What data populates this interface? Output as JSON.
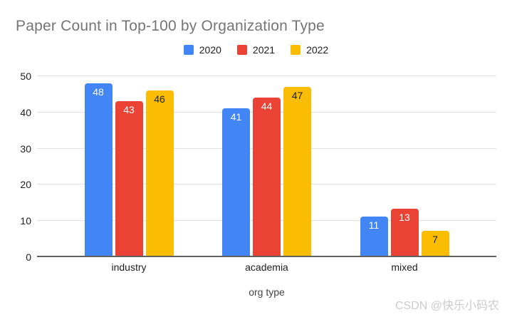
{
  "page": {
    "background": "#ffffff"
  },
  "chart_data": {
    "type": "bar",
    "title": "Paper Count in Top-100 by Organization Type",
    "title_color": "#757575",
    "categories": [
      "industry",
      "academia",
      "mixed"
    ],
    "series": [
      {
        "name": "2020",
        "color": "#4285F4",
        "label_color": "#ffffff",
        "values": [
          48,
          41,
          11
        ]
      },
      {
        "name": "2021",
        "color": "#EA4335",
        "label_color": "#ffffff",
        "values": [
          43,
          44,
          13
        ]
      },
      {
        "name": "2022",
        "color": "#FBBC04",
        "label_color": "#202124",
        "values": [
          46,
          47,
          7
        ]
      }
    ],
    "xlabel": "org type",
    "ylabel": "",
    "ylim": [
      0,
      50
    ],
    "yticks": [
      0,
      10,
      20,
      30,
      40,
      50
    ],
    "grid": true,
    "legend_position": "top-center",
    "gridline_color": "#e2e2e2",
    "axis_line_color": "#616161",
    "tick_label_color": "#202124"
  },
  "watermark": {
    "text": "CSDN @快乐小码农",
    "color": "#cccccc"
  }
}
